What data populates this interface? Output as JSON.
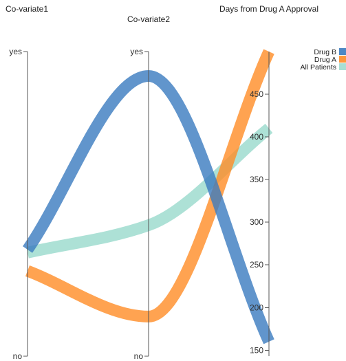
{
  "chart_data": {
    "type": "parallel-coordinates",
    "axes": [
      {
        "name": "Co-variate1",
        "kind": "categorical",
        "ticks": [
          "yes",
          "no"
        ]
      },
      {
        "name": "Co-variate2",
        "kind": "categorical",
        "ticks": [
          "yes",
          "no"
        ]
      },
      {
        "name": "Days from Drug A Approval",
        "kind": "numeric",
        "range": [
          143,
          500
        ],
        "ticks": [
          150,
          200,
          250,
          300,
          350,
          400,
          450
        ]
      }
    ],
    "series": [
      {
        "name": "Drug B",
        "color": "#3a7bbf",
        "values": [
          0.35,
          0.92,
          160
        ]
      },
      {
        "name": "Drug A",
        "color": "#ff8c26",
        "values": [
          0.28,
          0.13,
          500
        ]
      },
      {
        "name": "All Patients",
        "color": "#9fdccf",
        "values": [
          0.34,
          0.43,
          410
        ]
      }
    ],
    "legend_position": "top-right"
  }
}
